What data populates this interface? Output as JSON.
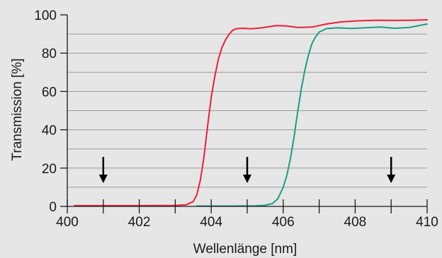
{
  "chart_data": {
    "type": "line",
    "xlabel": "Wellenlänge [nm]",
    "ylabel": "Transmission [%]",
    "xlim": [
      400,
      410
    ],
    "ylim": [
      0,
      100
    ],
    "x_ticks": [
      "400",
      "402",
      "404",
      "406",
      "408",
      "410"
    ],
    "y_ticks": [
      "0",
      "20",
      "40",
      "60",
      "80",
      "100"
    ],
    "x_minor_ticks": [
      401,
      403,
      405,
      407,
      409
    ],
    "y_gridlines": [
      10,
      20,
      30,
      40,
      50,
      60,
      70,
      80,
      90
    ],
    "grid": true,
    "arrows_at_x": [
      401,
      405,
      409
    ],
    "series": [
      {
        "color": "#e8203a",
        "points": [
          [
            400.2,
            0.4
          ],
          [
            401,
            0.4
          ],
          [
            402,
            0.4
          ],
          [
            403,
            0.5
          ],
          [
            403.3,
            0.8
          ],
          [
            403.5,
            2.5
          ],
          [
            403.6,
            6
          ],
          [
            403.7,
            14
          ],
          [
            403.8,
            26
          ],
          [
            403.9,
            42
          ],
          [
            404.0,
            57
          ],
          [
            404.1,
            68
          ],
          [
            404.2,
            77
          ],
          [
            404.3,
            83
          ],
          [
            404.4,
            87
          ],
          [
            404.5,
            90
          ],
          [
            404.6,
            92
          ],
          [
            404.7,
            92.8
          ],
          [
            404.9,
            93
          ],
          [
            405.1,
            92.7
          ],
          [
            405.4,
            93.2
          ],
          [
            405.8,
            94.4
          ],
          [
            406.1,
            94.2
          ],
          [
            406.4,
            93.4
          ],
          [
            406.8,
            93.6
          ],
          [
            407.2,
            95.2
          ],
          [
            407.6,
            96.3
          ],
          [
            408.1,
            96.9
          ],
          [
            408.6,
            97.2
          ],
          [
            409.1,
            97.1
          ],
          [
            409.6,
            97.2
          ],
          [
            410,
            97.4
          ]
        ]
      },
      {
        "color": "#1a9f7e",
        "points": [
          [
            403.6,
            0.2
          ],
          [
            404.5,
            0.2
          ],
          [
            405.2,
            0.3
          ],
          [
            405.5,
            0.6
          ],
          [
            405.7,
            1.5
          ],
          [
            405.85,
            4
          ],
          [
            406.0,
            10
          ],
          [
            406.1,
            16
          ],
          [
            406.2,
            25
          ],
          [
            406.3,
            36
          ],
          [
            406.4,
            49
          ],
          [
            406.5,
            61
          ],
          [
            406.6,
            71
          ],
          [
            406.7,
            79
          ],
          [
            406.8,
            85
          ],
          [
            406.9,
            88.5
          ],
          [
            407.0,
            91
          ],
          [
            407.2,
            92.8
          ],
          [
            407.5,
            93.2
          ],
          [
            407.9,
            92.9
          ],
          [
            408.3,
            93.3
          ],
          [
            408.7,
            93.6
          ],
          [
            409.1,
            93
          ],
          [
            409.5,
            93.4
          ],
          [
            410,
            95.2
          ]
        ]
      }
    ]
  }
}
